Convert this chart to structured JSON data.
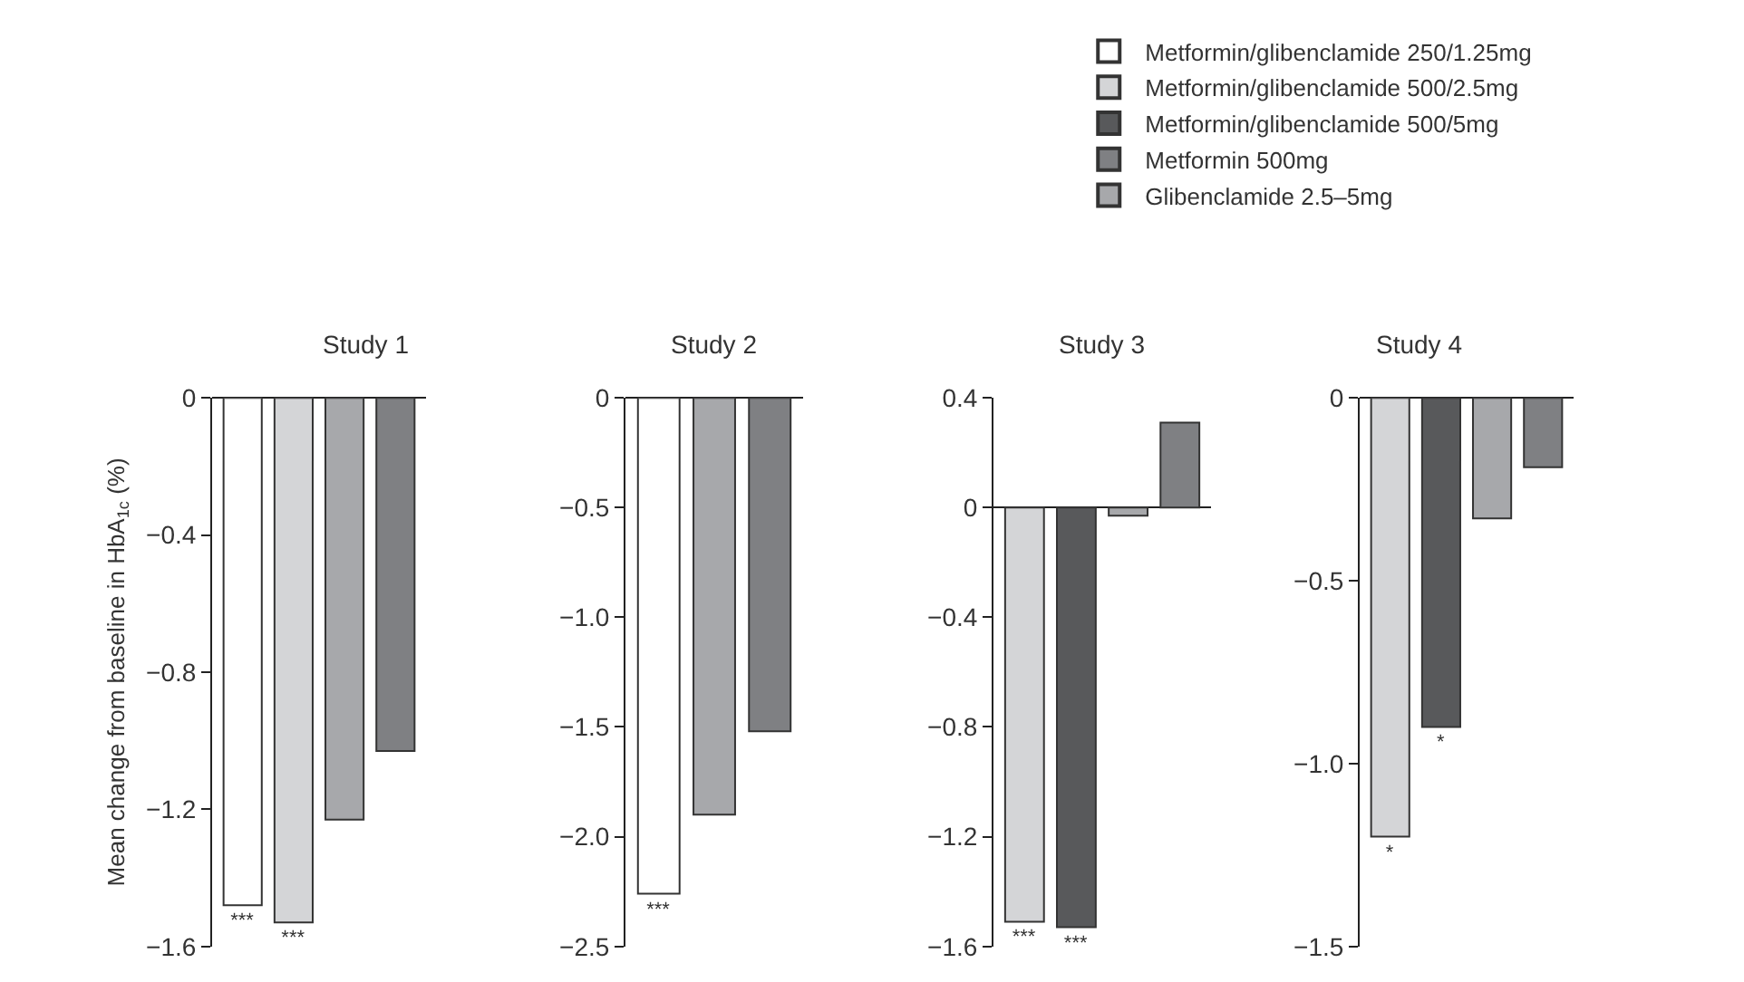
{
  "chart_data": [
    {
      "type": "bar",
      "title": "Study 1",
      "ylabel": "Mean change from baseline in HbA$_{1c}$ (%)",
      "categories": [
        null,
        null,
        null,
        null
      ],
      "legend": "top right",
      "tick_labels": "y",
      "ylim": [
        -1.6,
        0
      ],
      "yticks": [
        0,
        {
          "value": -0.4,
          "label": "−0.4"
        },
        {
          "value": -0.8,
          "label": "−0.8"
        },
        {
          "value": -1.2,
          "label": "−1.2"
        },
        {
          "value": -1.6,
          "label": "−1.6"
        }
      ],
      "series": [
        {
          "name": "Metformin/glibenclamide 250/1.25mg",
          "color": "#ffffff",
          "values": [
            -1.48,
            null,
            null,
            null
          ],
          "value_labels": [
            "***",
            null,
            null,
            null
          ]
        },
        {
          "name": "Metformin/glibenclamide 500/2.5mg",
          "color": "#d4d5d7",
          "values": [
            null,
            -1.53,
            null,
            null
          ],
          "value_labels": [
            null,
            "***",
            null,
            null
          ]
        },
        {
          "name": "Metformin/glibenclamide 500/5mg",
          "color": "#58595b",
          "values": [
            null,
            null,
            null,
            null
          ]
        },
        {
          "name": "Metformin 500mg",
          "color": "#7f8083",
          "values": [
            null,
            null,
            null,
            -1.03
          ]
        },
        {
          "name": "Glibenclamide 2.5–5mg",
          "color": "#a7a8ab",
          "values": [
            null,
            null,
            -1.23,
            null
          ]
        }
      ]
    },
    {
      "type": "bar",
      "title": "Study 2",
      "categories": [
        null,
        null,
        null
      ],
      "tick_labels": "y",
      "ylim": [
        -2.5,
        0
      ],
      "yticks": [
        0,
        {
          "value": -0.5,
          "label": "−0.5"
        },
        {
          "value": -1.0,
          "label": "−1.0"
        },
        {
          "value": -1.5,
          "label": "−1.5"
        },
        {
          "value": -2.0,
          "label": "−2.0"
        },
        {
          "value": -2.5,
          "label": "−2.5"
        }
      ],
      "series": [
        {
          "color": "#ffffff",
          "values": [
            -2.26,
            null,
            null
          ],
          "value_labels": [
            "***",
            null,
            null
          ]
        },
        {
          "color": "#a7a8ab",
          "values": [
            null,
            -1.9,
            null
          ]
        },
        {
          "color": "#7f8083",
          "values": [
            null,
            null,
            -1.52
          ]
        }
      ]
    },
    {
      "type": "bar",
      "title": "Study 3",
      "categories": [
        null,
        null,
        null,
        null
      ],
      "tick_labels": "y",
      "ylim": [
        -1.6,
        0.4
      ],
      "yticks": [
        0.4,
        0,
        {
          "value": -0.4,
          "label": "−0.4"
        },
        {
          "value": -0.8,
          "label": "−0.8"
        },
        {
          "value": -1.2,
          "label": "−1.2"
        },
        {
          "value": -1.6,
          "label": "−1.6"
        }
      ],
      "series": [
        {
          "color": "#d4d5d7",
          "values": [
            -1.51,
            null,
            null,
            null
          ],
          "value_labels": [
            "***",
            null,
            null,
            null
          ]
        },
        {
          "color": "#58595b",
          "values": [
            null,
            -1.53,
            null,
            null
          ],
          "value_labels": [
            null,
            "***",
            null,
            null
          ]
        },
        {
          "color": "#a7a8ab",
          "values": [
            null,
            null,
            -0.03,
            null
          ]
        },
        {
          "color": "#7f8083",
          "values": [
            null,
            null,
            null,
            0.31
          ]
        }
      ]
    },
    {
      "type": "bar",
      "title": "Study 4",
      "categories": [
        null,
        null,
        null,
        null
      ],
      "tick_labels": "y",
      "ylim": [
        -1.5,
        0
      ],
      "yticks": [
        0,
        {
          "value": -0.5,
          "label": "−0.5"
        },
        {
          "value": -1.0,
          "label": "−1.0"
        },
        {
          "value": -1.5,
          "label": "−1.5"
        }
      ],
      "series": [
        {
          "color": "#d4d5d7",
          "values": [
            -1.2,
            null,
            null,
            null
          ],
          "value_labels": [
            "*",
            null,
            null,
            null
          ]
        },
        {
          "color": "#58595b",
          "values": [
            null,
            -0.9,
            null,
            null
          ],
          "value_labels": [
            null,
            "*",
            null,
            null
          ]
        },
        {
          "color": "#a7a8ab",
          "values": [
            null,
            null,
            -0.33,
            null
          ]
        },
        {
          "color": "#7f8083",
          "values": [
            null,
            null,
            null,
            -0.19
          ]
        }
      ]
    }
  ]
}
